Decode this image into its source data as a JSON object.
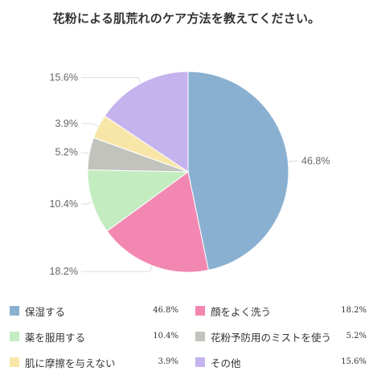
{
  "title": "花粉による肌荒れのケア方法を教えてください。",
  "chart_data": {
    "type": "pie",
    "title": "花粉による肌荒れのケア方法を教えてください。",
    "slices": [
      {
        "label": "保湿する",
        "value": 46.8,
        "display": "46.8%",
        "color": "#8ab0d1"
      },
      {
        "label": "顔をよく洗う",
        "value": 18.2,
        "display": "18.2%",
        "color": "#f288b1"
      },
      {
        "label": "薬を服用する",
        "value": 10.4,
        "display": "10.4%",
        "color": "#c3ecc1"
      },
      {
        "label": "花粉予防用のミストを使う",
        "value": 5.2,
        "display": "5.2%",
        "color": "#c2c3bd"
      },
      {
        "label": "肌に摩擦を与えない",
        "value": 3.9,
        "display": "3.9%",
        "color": "#f8e6a9"
      },
      {
        "label": "その他",
        "value": 15.6,
        "display": "15.6%",
        "color": "#c5b3ee"
      }
    ],
    "legend_position": "bottom",
    "start_angle": "top, clockwise"
  }
}
